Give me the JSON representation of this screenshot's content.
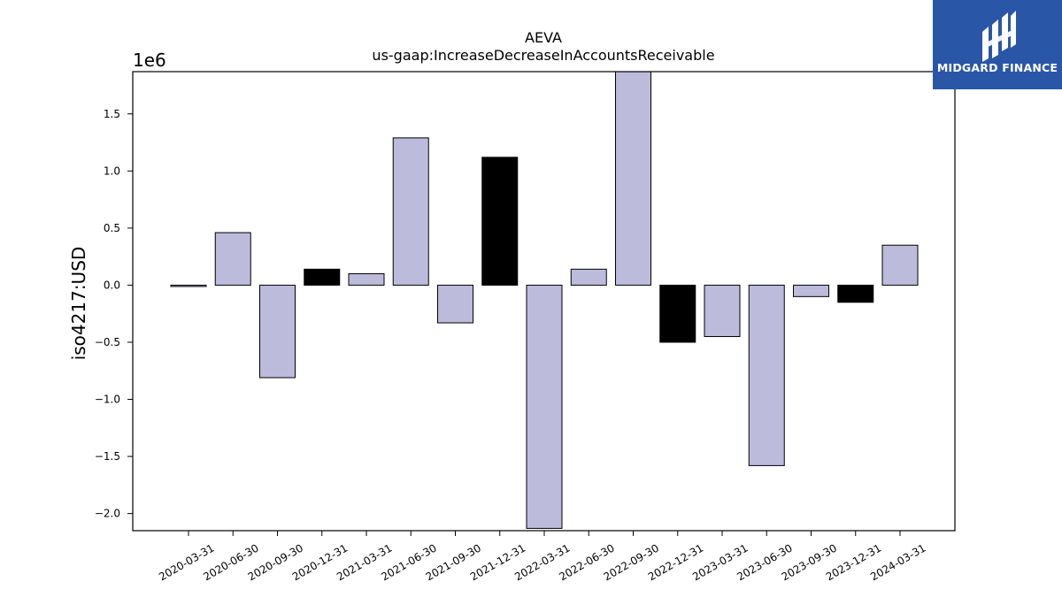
{
  "chart_data": {
    "type": "bar",
    "title": "AEVA",
    "subtitle": "us-gaap:IncreaseDecreaseInAccountsReceivable",
    "xlabel": "",
    "ylabel": "iso4217:USD",
    "y_offset_label": "1e6",
    "ylim": [
      -2.15,
      1.87
    ],
    "y_ticks": [
      -2.0,
      -1.5,
      -1.0,
      -0.5,
      0.0,
      0.5,
      1.0,
      1.5
    ],
    "y_tick_labels": [
      "−2.0",
      "−1.5",
      "−1.0",
      "−0.5",
      "0.0",
      "0.5",
      "1.0",
      "1.5"
    ],
    "grid": false,
    "legend": "none",
    "colors": {
      "default": "#bdbbdb",
      "highlight": "#000000",
      "edge": "#000000"
    },
    "categories": [
      "2020-03-31",
      "2020-06-30",
      "2020-09-30",
      "2020-12-31",
      "2021-03-31",
      "2021-06-30",
      "2021-09-30",
      "2021-12-31",
      "2022-03-31",
      "2022-06-30",
      "2022-09-30",
      "2022-12-31",
      "2023-03-31",
      "2023-06-30",
      "2023-09-30",
      "2023-12-31",
      "2024-03-31"
    ],
    "values": [
      -0.01,
      0.46,
      -0.81,
      0.14,
      0.1,
      1.29,
      -0.33,
      1.12,
      -2.13,
      0.14,
      1.88,
      -0.5,
      -0.45,
      -1.58,
      -0.1,
      -0.15,
      0.35
    ],
    "highlighted": [
      false,
      false,
      false,
      true,
      false,
      false,
      false,
      true,
      false,
      false,
      false,
      true,
      false,
      false,
      false,
      true,
      false
    ]
  },
  "logo": {
    "text": "MIDGARD FINANCE"
  }
}
